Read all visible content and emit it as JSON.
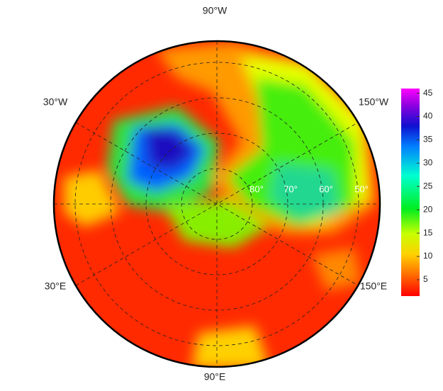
{
  "map": {
    "longitude_labels": [
      "90°W",
      "30°W",
      "150°W",
      "30°E",
      "150°E",
      "90°E"
    ],
    "latitude_labels": [
      "80°",
      "70°",
      "60°",
      "50°"
    ]
  },
  "colorbar": {
    "lim": [
      1.5,
      46
    ],
    "ticks": [
      5,
      10,
      15,
      20,
      25,
      30,
      35,
      40,
      45
    ]
  }
}
